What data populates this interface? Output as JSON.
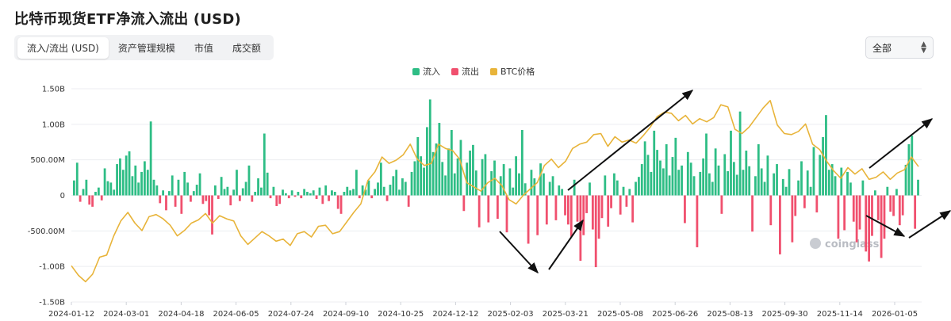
{
  "title": "比特币现货ETF净流入流出 (USD)",
  "tabs": [
    {
      "label": "流入/流出 (USD)",
      "active": true
    },
    {
      "label": "资产管理规模",
      "active": false
    },
    {
      "label": "市值",
      "active": false
    },
    {
      "label": "成交额",
      "active": false
    }
  ],
  "range_select": {
    "value": "全部"
  },
  "watermark": "coinglass",
  "colors": {
    "inflow": "#2ebd85",
    "outflow": "#f0506e",
    "btc_price": "#e8b43a",
    "arrows": "#111111"
  },
  "chart_data": {
    "type": "bar",
    "ylim": [
      -1.5,
      1.5
    ],
    "y_unit": "B USD",
    "y_ticks": [
      "1.50B",
      "1.00B",
      "500.00M",
      "0",
      "-500.00M",
      "-1.00B",
      "-1.50B"
    ],
    "x_ticks": [
      "2024-01-12",
      "2024-03-01",
      "2024-04-18",
      "2024-06-05",
      "2024-07-24",
      "2024-09-10",
      "2024-10-25",
      "2024-12-12",
      "2025-02-03",
      "2025-03-21",
      "2025-05-08",
      "2025-06-26",
      "2025-08-13",
      "2025-09-30",
      "2025-11-14",
      "2026-01-05"
    ],
    "grid": true,
    "legend_position": "top-center",
    "series": [
      {
        "name": "流入",
        "kind": "bar_positive"
      },
      {
        "name": "流出",
        "kind": "bar_negative"
      },
      {
        "name": "BTC价格",
        "kind": "line"
      }
    ],
    "flow_values": [
      0.21,
      0.46,
      -0.09,
      0.09,
      0.22,
      -0.13,
      -0.16,
      0.05,
      0.11,
      -0.07,
      0.38,
      0.2,
      0.18,
      0.08,
      0.44,
      0.52,
      0.36,
      0.56,
      0.62,
      0.27,
      0.42,
      0.18,
      0.33,
      0.48,
      0.36,
      1.04,
      0.22,
      0.14,
      -0.11,
      0.07,
      -0.21,
      0.06,
      0.28,
      -0.16,
      0.22,
      -0.26,
      0.33,
      0.18,
      -0.09,
      0.06,
      0.15,
      0.31,
      -0.12,
      -0.08,
      -0.28,
      -0.55,
      0.14,
      -0.05,
      0.26,
      0.09,
      0.12,
      -0.14,
      0.08,
      0.36,
      -0.08,
      0.1,
      0.19,
      0.42,
      -0.09,
      0.05,
      0.24,
      0.11,
      0.87,
      0.32,
      -0.04,
      0.12,
      -0.15,
      -0.12,
      0.08,
      0.03,
      -0.04,
      0.07,
      -0.02,
      0.05,
      -0.04,
      0.09,
      0.05,
      0.03,
      0.07,
      -0.05,
      0.11,
      -0.12,
      0.14,
      -0.08,
      0.07,
      0.05,
      -0.19,
      -0.26,
      0.05,
      0.12,
      0.07,
      0.09,
      0.36,
      -0.04,
      0.14,
      0.08,
      0.21,
      -0.04,
      0.09,
      0.18,
      0.46,
      0.12,
      -0.08,
      0.15,
      0.27,
      0.36,
      0.08,
      0.24,
      0.19,
      -0.16,
      0.33,
      0.48,
      0.82,
      0.55,
      0.39,
      0.96,
      1.35,
      0.61,
      0.73,
      1.02,
      0.47,
      0.28,
      0.66,
      0.92,
      0.31,
      0.52,
      0.78,
      -0.22,
      0.46,
      0.63,
      0.71,
      0.35,
      -0.45,
      0.51,
      0.58,
      -0.38,
      0.34,
      0.49,
      -0.33,
      0.27,
      0.44,
      -0.52,
      0.38,
      0.11,
      0.55,
      0.31,
      0.92,
      0.17,
      -0.68,
      0.36,
      0.24,
      -0.56,
      0.45,
      0.31,
      -0.41,
      0.19,
      0.27,
      -0.35,
      0.14,
      0.09,
      -0.28,
      -0.41,
      -0.58,
      0.22,
      -0.37,
      -0.92,
      -0.56,
      -0.25,
      0.18,
      -0.48,
      -1.01,
      -0.61,
      -0.32,
      0.28,
      -0.44,
      -0.18,
      0.31,
      0.21,
      -0.27,
      0.12,
      -0.16,
      0.09,
      -0.38,
      0.19,
      0.26,
      0.44,
      0.76,
      0.57,
      0.33,
      0.91,
      0.64,
      0.49,
      0.38,
      0.72,
      0.28,
      0.54,
      0.81,
      0.36,
      0.42,
      -0.39,
      0.61,
      0.46,
      0.27,
      -0.73,
      0.33,
      0.52,
      0.87,
      0.31,
      0.19,
      0.66,
      0.42,
      -0.26,
      0.58,
      0.34,
      0.91,
      0.47,
      0.29,
      1.18,
      0.36,
      0.63,
      0.41,
      -0.51,
      0.27,
      0.72,
      0.38,
      0.19,
      0.56,
      -0.42,
      0.31,
      0.44,
      -0.83,
      0.23,
      0.12,
      0.37,
      -0.66,
      -0.29,
      0.21,
      0.48,
      -0.18,
      0.35,
      0.12,
      0.68,
      -0.24,
      0.57,
      0.82,
      1.13,
      0.36,
      0.44,
      0.27,
      -0.61,
      0.39,
      -0.49,
      0.33,
      0.18,
      -0.37,
      -0.66,
      -0.48,
      0.21,
      -0.79,
      -0.93,
      -0.57,
      0.07,
      -0.35,
      -0.88,
      -0.61,
      0.12,
      -0.23,
      -0.29,
      0.09,
      -0.42,
      -0.28,
      0.43,
      0.72,
      0.84,
      -0.47,
      0.22
    ],
    "btc_price": [
      47000,
      42500,
      39500,
      43000,
      51000,
      52000,
      61000,
      68000,
      72000,
      67000,
      63500,
      70000,
      71000,
      69000,
      66000,
      61000,
      63500,
      67000,
      68500,
      71500,
      67000,
      70500,
      69000,
      68000,
      61000,
      57000,
      60000,
      63000,
      61000,
      58500,
      59500,
      56500,
      62000,
      63000,
      60500,
      65500,
      66000,
      62000,
      63000,
      67500,
      72000,
      76000,
      87000,
      91000,
      98000,
      95000,
      96500,
      99000,
      104000,
      97000,
      94000,
      95000,
      104000,
      102000,
      101000,
      97000,
      86000,
      84000,
      82000,
      86000,
      88000,
      84500,
      78000,
      76000,
      80000,
      83000,
      86000,
      94000,
      97000,
      93000,
      96000,
      102000,
      104000,
      105000,
      108500,
      109000,
      103000,
      107500,
      105000,
      106000,
      104500,
      108000,
      112000,
      117000,
      119000,
      118500,
      115000,
      117500,
      113500,
      116000,
      114500,
      116500,
      122500,
      121500,
      111000,
      109000,
      112000,
      116500,
      121000,
      124500,
      113000,
      109000,
      108500,
      110000,
      113500,
      104000,
      101500,
      96000,
      91500,
      88000,
      93000,
      90000,
      92500,
      87500,
      88500,
      91000,
      87500,
      90500,
      92000,
      98000,
      93500
    ]
  }
}
